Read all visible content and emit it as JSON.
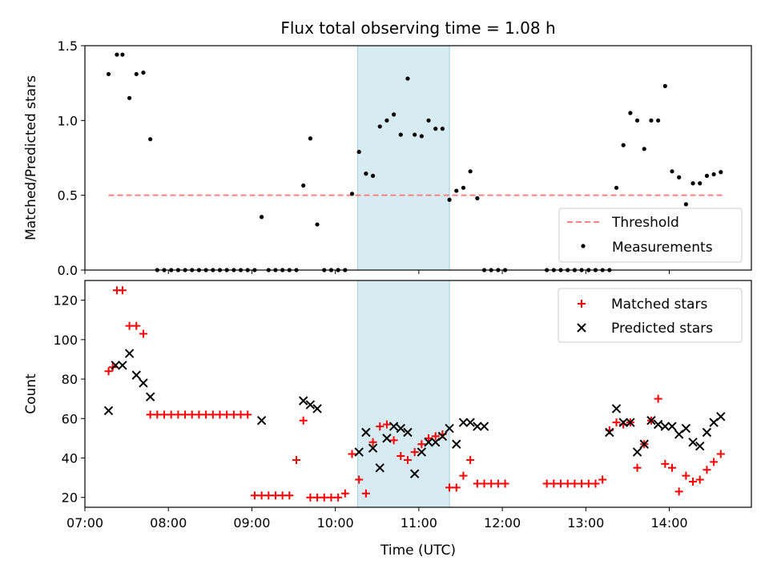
{
  "figure": {
    "title": "Flux total observing time = 1.08 h",
    "xlabel": "Time (UTC)"
  },
  "chart_data": [
    {
      "type": "scatter",
      "ylabel": "Matched/Predicted stars",
      "xlim": [
        "07:00",
        "14:59"
      ],
      "ylim": [
        0,
        1.5
      ],
      "yticks": [
        0.0,
        0.5,
        1.0,
        1.5
      ],
      "yticklabels": [
        "0.0",
        "0.5",
        "1.0",
        "1.5"
      ],
      "shaded_span": [
        "10:16",
        "11:22"
      ],
      "legend": {
        "position": "lower-right",
        "entries": [
          "Threshold",
          "Measurements"
        ]
      },
      "threshold": {
        "name": "Threshold",
        "value": 0.5,
        "x": [
          "07:17",
          "14:39"
        ],
        "color": "#ff8080",
        "style": "dashed"
      },
      "series": [
        {
          "name": "Measurements",
          "marker": "dot",
          "color": "#000000",
          "x": [
            "07:17",
            "07:23",
            "07:27",
            "07:32",
            "07:37",
            "07:42",
            "07:47",
            "07:52",
            "07:57",
            "08:02",
            "08:07",
            "08:12",
            "08:17",
            "08:22",
            "08:27",
            "08:32",
            "08:37",
            "08:42",
            "08:47",
            "08:52",
            "08:57",
            "09:02",
            "09:07",
            "09:12",
            "09:17",
            "09:22",
            "09:27",
            "09:32",
            "09:37",
            "09:42",
            "09:47",
            "09:52",
            "09:57",
            "10:02",
            "10:07",
            "10:12",
            "10:17",
            "10:22",
            "10:27",
            "10:32",
            "10:37",
            "10:42",
            "10:47",
            "10:52",
            "10:57",
            "11:02",
            "11:07",
            "11:12",
            "11:17",
            "11:22",
            "11:27",
            "11:32",
            "11:37",
            "11:42",
            "11:47",
            "11:52",
            "11:57",
            "12:02",
            "12:32",
            "12:37",
            "12:42",
            "12:47",
            "12:52",
            "12:57",
            "13:02",
            "13:07",
            "13:12",
            "13:17",
            "13:22",
            "13:27",
            "13:32",
            "13:37",
            "13:42",
            "13:47",
            "13:52",
            "13:57",
            "14:02",
            "14:07",
            "14:12",
            "14:17",
            "14:22",
            "14:27",
            "14:32",
            "14:37"
          ],
          "y": [
            1.31,
            1.44,
            1.44,
            1.15,
            1.31,
            1.32,
            0.875,
            0,
            0,
            0,
            0,
            0,
            0,
            0,
            0,
            0,
            0,
            0,
            0,
            0,
            0,
            0,
            0.355,
            0,
            0,
            0,
            0,
            0,
            0.565,
            0.88,
            0.305,
            0,
            0,
            0,
            0,
            0.51,
            0.79,
            0.645,
            0.63,
            0.96,
            1.0,
            1.04,
            0.905,
            1.28,
            0.905,
            0.895,
            1.0,
            0.945,
            0.945,
            0.47,
            0.53,
            0.55,
            0.66,
            0.48,
            0,
            0,
            0,
            0,
            0,
            0,
            0,
            0,
            0,
            0,
            0,
            0,
            0,
            0,
            0.55,
            0.835,
            1.05,
            1.0,
            0.81,
            1.0,
            1.0,
            1.23,
            0.66,
            0.62,
            0.44,
            0.58,
            0.58,
            0.63,
            0.64,
            0.655
          ]
        }
      ]
    },
    {
      "type": "scatter",
      "ylabel": "Count",
      "xlim": [
        "07:00",
        "14:59"
      ],
      "ylim": [
        15,
        130
      ],
      "yticks": [
        20,
        40,
        60,
        80,
        100,
        120
      ],
      "yticklabels": [
        "20",
        "40",
        "60",
        "80",
        "100",
        "120"
      ],
      "xticks": [
        "07:00",
        "08:00",
        "09:00",
        "10:00",
        "11:00",
        "12:00",
        "13:00",
        "14:00"
      ],
      "xticklabels": [
        "07:00",
        "08:00",
        "09:00",
        "10:00",
        "11:00",
        "12:00",
        "13:00",
        "14:00"
      ],
      "shaded_span": [
        "10:16",
        "11:22"
      ],
      "legend": {
        "position": "top-right",
        "entries": [
          "Matched stars",
          "Predicted stars"
        ]
      },
      "series": [
        {
          "name": "Matched stars",
          "marker": "plus",
          "color": "#ff0000",
          "x": [
            "07:17",
            "07:20",
            "07:23",
            "07:27",
            "07:32",
            "07:37",
            "07:42",
            "07:47",
            "07:52",
            "07:57",
            "08:02",
            "08:07",
            "08:12",
            "08:17",
            "08:22",
            "08:27",
            "08:32",
            "08:37",
            "08:42",
            "08:47",
            "08:52",
            "08:57",
            "09:02",
            "09:07",
            "09:12",
            "09:17",
            "09:22",
            "09:27",
            "09:32",
            "09:37",
            "09:42",
            "09:47",
            "09:52",
            "09:57",
            "10:02",
            "10:07",
            "10:12",
            "10:17",
            "10:22",
            "10:27",
            "10:32",
            "10:37",
            "10:42",
            "10:47",
            "10:52",
            "10:57",
            "11:02",
            "11:07",
            "11:12",
            "11:17",
            "11:22",
            "11:27",
            "11:32",
            "11:37",
            "11:42",
            "11:47",
            "11:52",
            "11:57",
            "12:02",
            "12:32",
            "12:37",
            "12:42",
            "12:47",
            "12:52",
            "12:57",
            "13:02",
            "13:07",
            "13:12",
            "13:17",
            "13:22",
            "13:27",
            "13:32",
            "13:37",
            "13:42",
            "13:47",
            "13:52",
            "13:57",
            "14:02",
            "14:07",
            "14:12",
            "14:17",
            "14:22",
            "14:27",
            "14:32",
            "14:37"
          ],
          "y": [
            84,
            86,
            125,
            125,
            107,
            107,
            103,
            62,
            62,
            62,
            62,
            62,
            62,
            62,
            62,
            62,
            62,
            62,
            62,
            62,
            62,
            62,
            21,
            21,
            21,
            21,
            21,
            21,
            39,
            59,
            20,
            20,
            20,
            20,
            20,
            22,
            42,
            29,
            22,
            48,
            56,
            57,
            49,
            41,
            39,
            43,
            47,
            50,
            51,
            52,
            25,
            25,
            31,
            39,
            27,
            27,
            27,
            27,
            27,
            27,
            27,
            27,
            27,
            27,
            27,
            27,
            27,
            29,
            54,
            58,
            57,
            58,
            35,
            47,
            59,
            70,
            37,
            35,
            23,
            31,
            28,
            29,
            34,
            38,
            42
          ]
        },
        {
          "name": "Predicted stars",
          "marker": "x",
          "color": "#000000",
          "x": [
            "07:17",
            "07:22",
            "07:27",
            "07:32",
            "07:37",
            "07:42",
            "07:47",
            "09:07",
            "09:37",
            "09:42",
            "09:47",
            "10:17",
            "10:22",
            "10:27",
            "10:32",
            "10:37",
            "10:42",
            "10:47",
            "10:52",
            "10:57",
            "11:02",
            "11:07",
            "11:12",
            "11:17",
            "11:22",
            "11:27",
            "11:32",
            "11:37",
            "11:42",
            "11:47",
            "13:17",
            "13:22",
            "13:27",
            "13:32",
            "13:37",
            "13:42",
            "13:47",
            "13:52",
            "13:57",
            "14:02",
            "14:07",
            "14:12",
            "14:17",
            "14:22",
            "14:27",
            "14:32",
            "14:37"
          ],
          "y": [
            64,
            87,
            87,
            93,
            82,
            78,
            71,
            59,
            69,
            67,
            65,
            43,
            53,
            45,
            35,
            50,
            56,
            55,
            53,
            32,
            43,
            48,
            48,
            51,
            55,
            47,
            58,
            58,
            56,
            56,
            53,
            65,
            58,
            58,
            43,
            47,
            59,
            57,
            56,
            56,
            52,
            55,
            48,
            46,
            53,
            58,
            61
          ]
        }
      ]
    }
  ]
}
